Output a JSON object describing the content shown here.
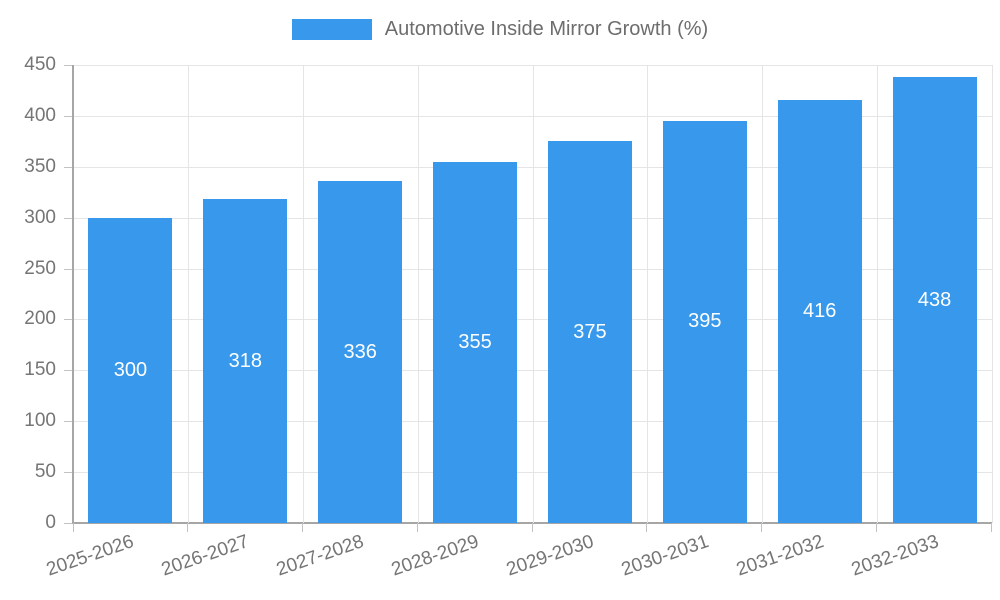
{
  "legend": {
    "label": "Automotive Inside Mirror Growth (%)"
  },
  "chart_data": {
    "type": "bar",
    "title": "Automotive Inside Mirror Growth (%)",
    "categories": [
      "2025-2026",
      "2026-2027",
      "2027-2028",
      "2028-2029",
      "2029-2030",
      "2030-2031",
      "2031-2032",
      "2032-2033"
    ],
    "series": [
      {
        "name": "Automotive Inside Mirror Growth (%)",
        "values": [
          300,
          318,
          336,
          355,
          375,
          395,
          416,
          438
        ]
      }
    ],
    "value_labels_shown": true,
    "xlabel": "",
    "ylabel": "",
    "ylim": [
      0,
      450
    ],
    "ytick_step": 50,
    "ytick_labels": [
      "0",
      "50",
      "100",
      "150",
      "200",
      "250",
      "300",
      "350",
      "400",
      "450"
    ],
    "grid": true,
    "legend_position": "top",
    "x_label_rotation_deg": -19,
    "colors": {
      "bar": "#3899EC",
      "value_label": "#FFFFFF",
      "axis": "#A6A6A6",
      "tick": "#C2C2C2",
      "grid": "#E5E5E5",
      "tick_label": "#757575",
      "legend_label": "#6D6D6D",
      "background": "#FFFFFF"
    }
  }
}
